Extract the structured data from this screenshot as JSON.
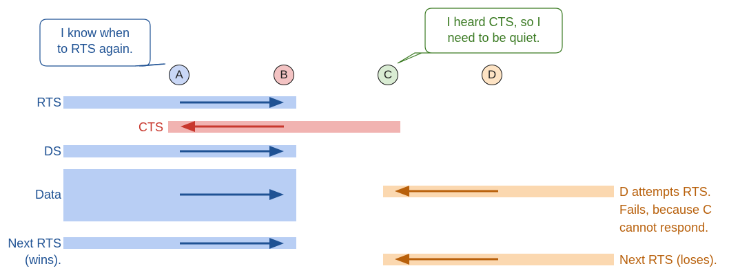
{
  "nodes": {
    "a": {
      "label": "A",
      "fill": "#c9d7f6"
    },
    "b": {
      "label": "B",
      "fill": "#f3c3c3"
    },
    "c": {
      "label": "C",
      "fill": "#d9ecd3"
    },
    "d": {
      "label": "D",
      "fill": "#fde3c4"
    }
  },
  "rows": {
    "rts": "RTS",
    "cts": "CTS",
    "ds": "DS",
    "data": "Data",
    "next_rts_line1": "Next RTS",
    "next_rts_line2": "(wins)."
  },
  "bubbles": {
    "left": {
      "line1": "I know when",
      "line2": "to RTS again."
    },
    "right": {
      "line1": "I heard CTS, so I",
      "line2": "need to be quiet."
    }
  },
  "notes": {
    "d_attempt_line1": "D attempts RTS.",
    "d_attempt_line2": "Fails, because C",
    "d_attempt_line3": "cannot respond.",
    "next_rts_loses": "Next RTS (loses)."
  },
  "colors": {
    "blue_band": "#b8cef4",
    "blue_arrow": "#1f5294",
    "red_band": "#f1b3b1",
    "red_arrow": "#c8372d",
    "orange_band": "#fbd8b0",
    "orange_arrow": "#b8600b",
    "bubble_left_border": "#1f5294",
    "bubble_right_border": "#3a7a22"
  }
}
